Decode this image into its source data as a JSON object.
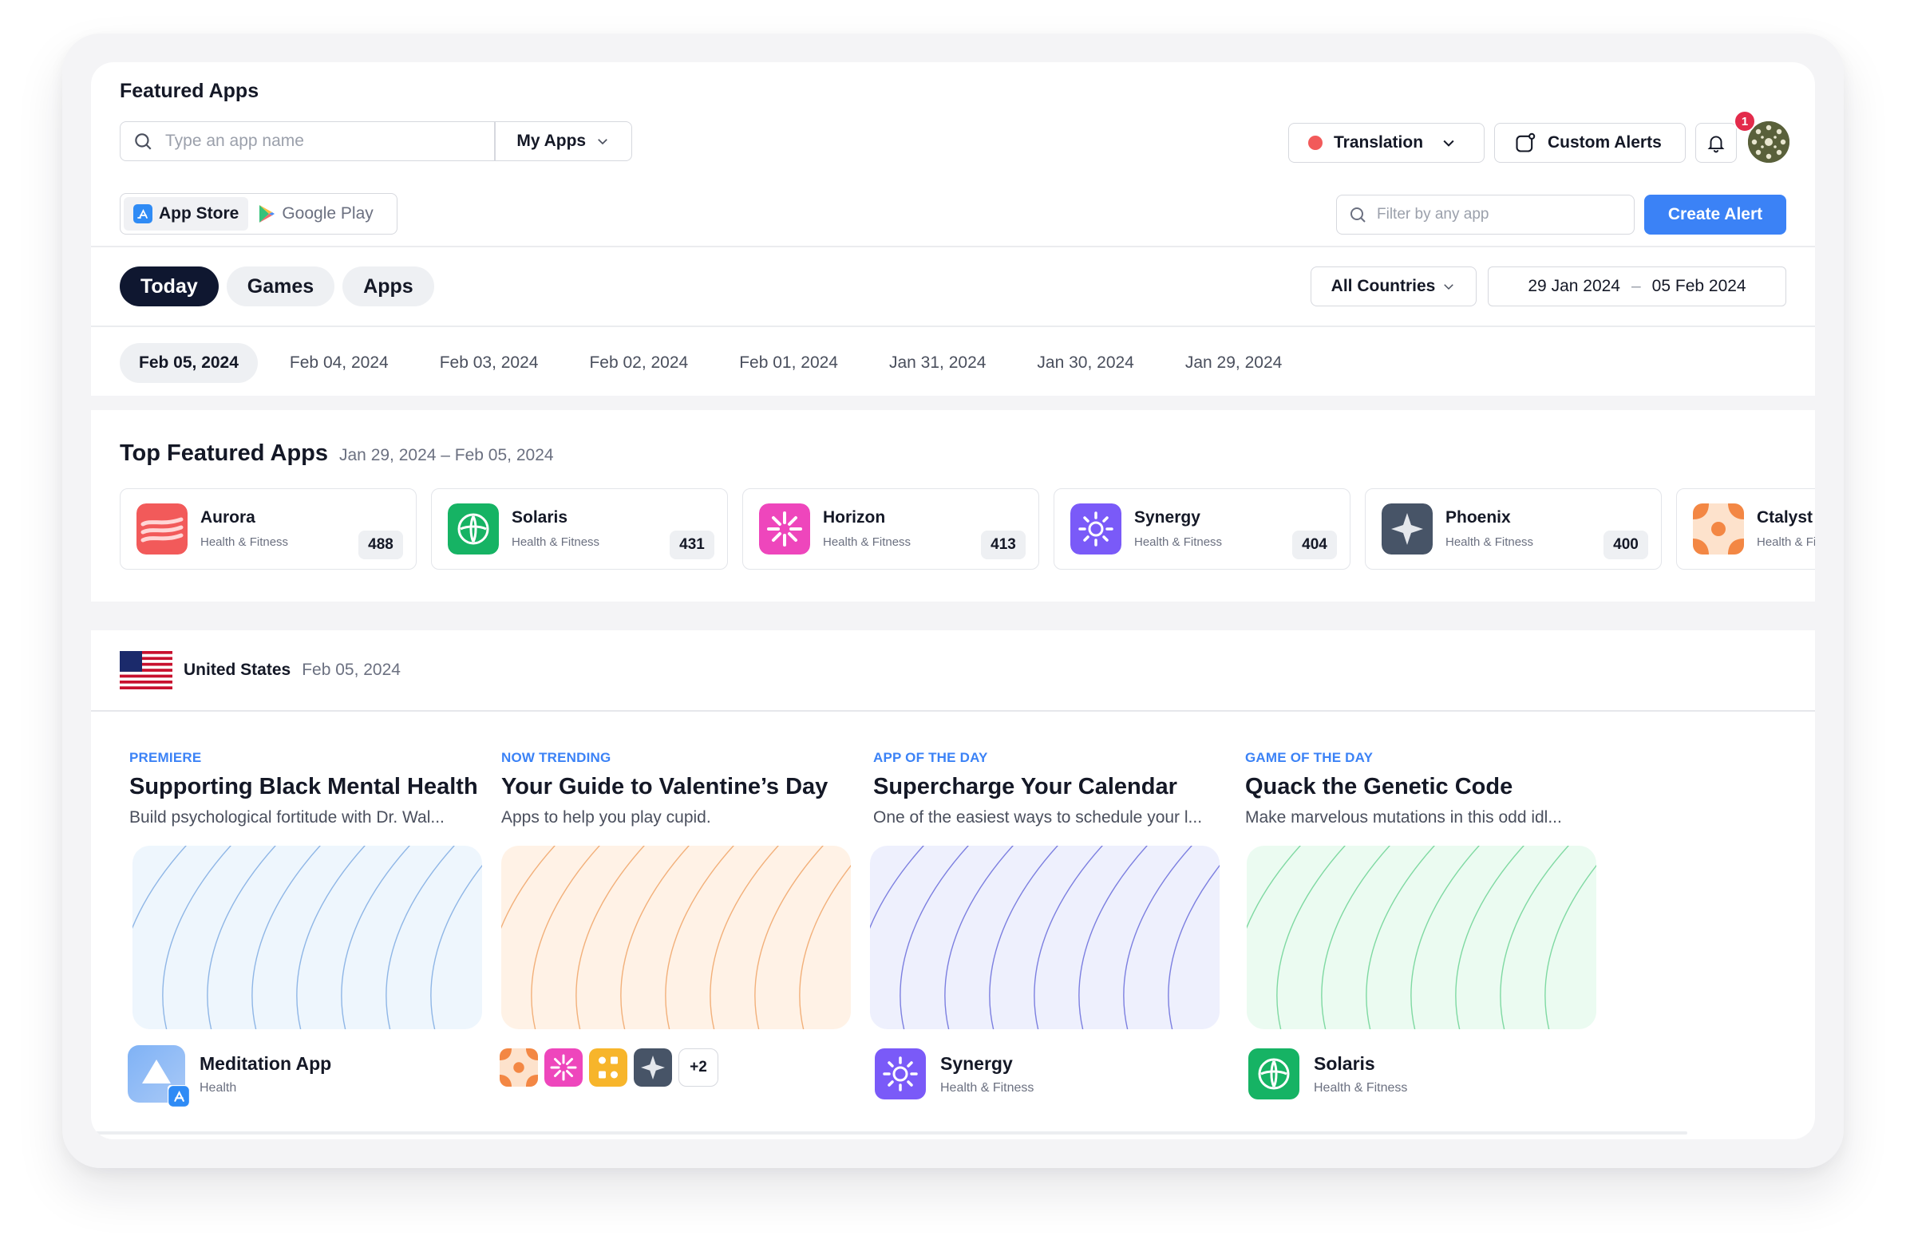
{
  "header": {
    "title": "Featured Apps",
    "search_placeholder": "Type an app name",
    "scope_label": "My Apps",
    "translation_label": "Translation",
    "custom_alerts_label": "Custom Alerts",
    "notification_count": "1"
  },
  "stores": {
    "app_store": "App Store",
    "google_play": "Google Play"
  },
  "filter": {
    "placeholder": "Filter by any app",
    "create_alert": "Create Alert"
  },
  "tabs": [
    "Today",
    "Games",
    "Apps"
  ],
  "countries_label": "All Countries",
  "date_range": {
    "start": "29 Jan 2024",
    "separator": "–",
    "end": "05 Feb 2024"
  },
  "dates": [
    "Feb 05, 2024",
    "Feb 04, 2024",
    "Feb 03, 2024",
    "Feb 02, 2024",
    "Feb 01, 2024",
    "Jan 31, 2024",
    "Jan 30, 2024",
    "Jan 29, 2024"
  ],
  "top_featured": {
    "title": "Top Featured Apps",
    "range": "Jan 29, 2024 – Feb 05, 2024",
    "apps": [
      {
        "name": "Aurora",
        "category": "Health & Fitness",
        "count": "488",
        "icon": "aurora-icon",
        "color": "#f25a5a"
      },
      {
        "name": "Solaris",
        "category": "Health & Fitness",
        "count": "431",
        "icon": "solaris-icon",
        "color": "#16b364"
      },
      {
        "name": "Horizon",
        "category": "Health & Fitness",
        "count": "413",
        "icon": "horizon-icon",
        "color": "#ee46bc"
      },
      {
        "name": "Synergy",
        "category": "Health & Fitness",
        "count": "404",
        "icon": "synergy-icon",
        "color": "#7a5af8"
      },
      {
        "name": "Phoenix",
        "category": "Health & Fitness",
        "count": "400",
        "icon": "phoenix-icon",
        "color": "#475467"
      },
      {
        "name": "Ctalyst",
        "category": "Health & Fitness",
        "count": "",
        "icon": "catalyst-icon",
        "color": "#f38744"
      }
    ]
  },
  "country": {
    "name": "United States",
    "date": "Feb 05, 2024"
  },
  "featured": [
    {
      "kicker": "PREMIERE",
      "title": "Supporting Black Mental Health",
      "desc": "Build psychological fortitude with Dr. Wal...",
      "app_name": "Meditation App",
      "app_category": "Health",
      "art_bg": "#eef6fd",
      "art_line": "#8fb6e6"
    },
    {
      "kicker": "NOW TRENDING",
      "title": "Your Guide to Valentine’s Day",
      "desc": "Apps to help you play cupid.",
      "more": "+2",
      "art_bg": "#fff2e6",
      "art_line": "#f2b07a"
    },
    {
      "kicker": "APP OF THE DAY",
      "title": "Supercharge Your Calendar",
      "desc": "One of the easiest ways to schedule your l...",
      "app_name": "Synergy",
      "app_category": "Health & Fitness",
      "art_bg": "#eef0fd",
      "art_line": "#7c7fe0"
    },
    {
      "kicker": "GAME OF THE DAY",
      "title": "Quack the Genetic Code",
      "desc": "Make marvelous mutations in this odd idl...",
      "app_name": "Solaris",
      "app_category": "Health & Fitness",
      "art_bg": "#ebfbf1",
      "art_line": "#7fd9a2"
    }
  ]
}
